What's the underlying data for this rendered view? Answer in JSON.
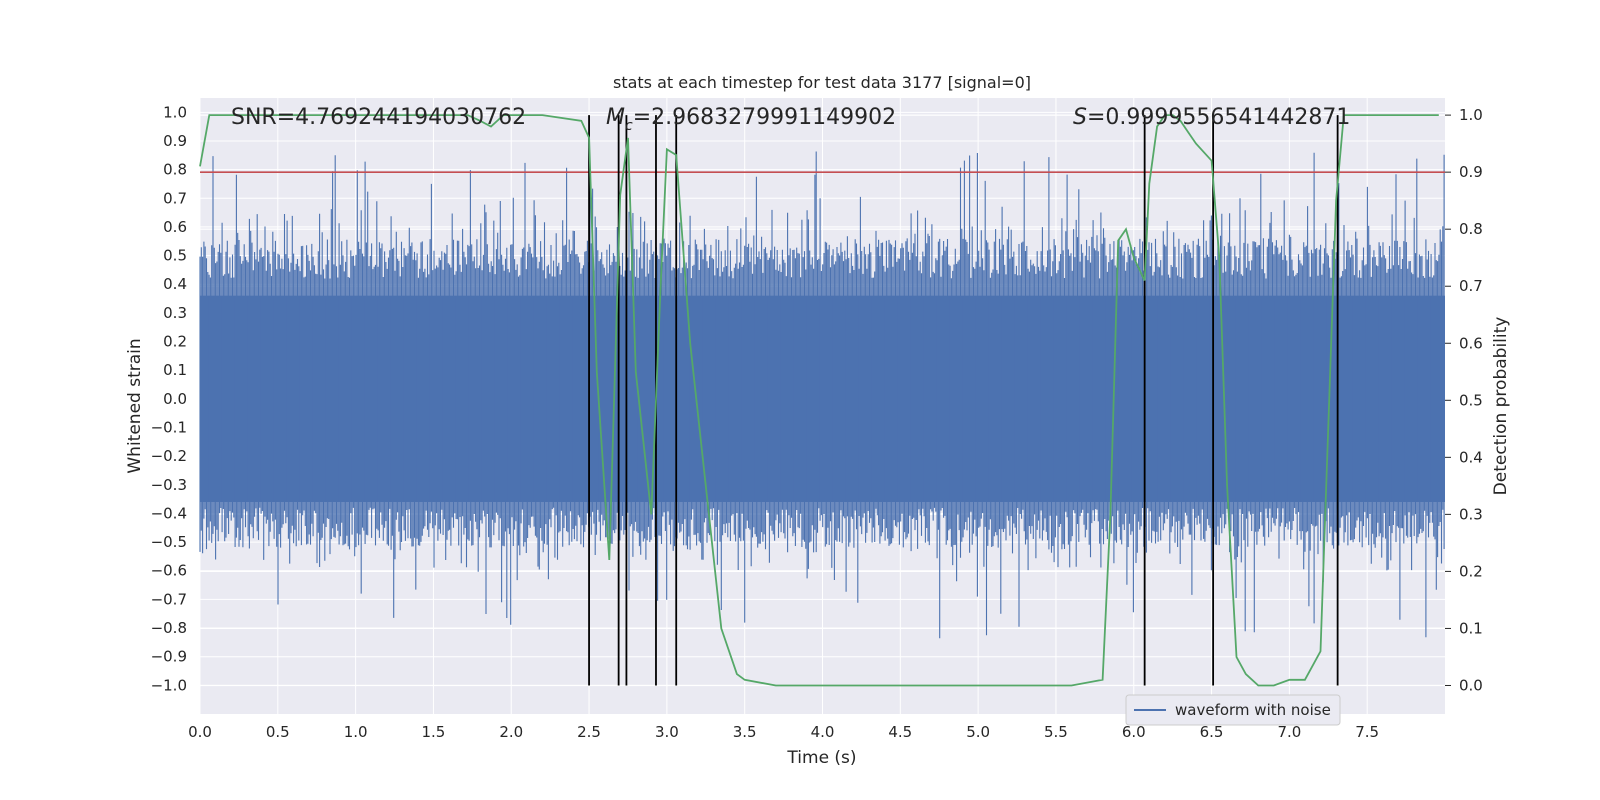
{
  "chart_data": {
    "type": "line",
    "title": "stats at each timestep for test data 3177 [signal=0]",
    "xlabel": "Time (s)",
    "ylabel_left": "Whitened strain",
    "ylabel_right": "Detection probability",
    "xlim": [
      0.0,
      8.0
    ],
    "ylim_left": [
      -1.1,
      1.05
    ],
    "ylim_right": [
      -0.05,
      1.03
    ],
    "x_ticks": [
      "0.0",
      "0.5",
      "1.0",
      "1.5",
      "2.0",
      "2.5",
      "3.0",
      "3.5",
      "4.0",
      "4.5",
      "5.0",
      "5.5",
      "6.0",
      "6.5",
      "7.0",
      "7.5"
    ],
    "y_left_ticks": [
      "1.0",
      "0.9",
      "0.8",
      "0.7",
      "0.6",
      "0.5",
      "0.4",
      "0.3",
      "0.2",
      "0.1",
      "0.0",
      "−0.1",
      "−0.2",
      "−0.3",
      "−0.4",
      "−0.5",
      "−0.6",
      "−0.7",
      "−0.8",
      "−0.9",
      "−1.0"
    ],
    "y_right_ticks": [
      "1.0",
      "0.9",
      "0.8",
      "0.7",
      "0.6",
      "0.5",
      "0.4",
      "0.3",
      "0.2",
      "0.1",
      "0.0"
    ],
    "grid": true,
    "annotations": {
      "snr": "SNR=4.769244194030762",
      "mc_symbol": "M",
      "mc_sub": "c",
      "mc_value": "=2.9683279991149902",
      "s_symbol": "S",
      "s_value": "=0.9999556541442871"
    },
    "series": [
      {
        "name": "waveform with noise",
        "axis": "left",
        "color": "#4c72b0",
        "description_values": {
          "core_amplitude": 0.36,
          "peak_max": 0.93,
          "trough_min": -0.92
        }
      },
      {
        "axis": "right",
        "color": "#55a868",
        "x": [
          0.0,
          0.06,
          0.5,
          1.0,
          1.5,
          1.72,
          1.8,
          1.87,
          1.95,
          2.2,
          2.45,
          2.5,
          2.55,
          2.63,
          2.7,
          2.75,
          2.8,
          2.9,
          2.96,
          3.0,
          3.06,
          3.15,
          3.25,
          3.35,
          3.45,
          3.5,
          3.7,
          4.0,
          4.3,
          4.5,
          4.8,
          5.0,
          5.3,
          5.6,
          5.8,
          5.85,
          5.9,
          5.95,
          6.0,
          6.07,
          6.1,
          6.15,
          6.2,
          6.25,
          6.3,
          6.35,
          6.4,
          6.5,
          6.55,
          6.6,
          6.66,
          6.72,
          6.8,
          6.9,
          7.0,
          7.1,
          7.2,
          7.3,
          7.35,
          7.4,
          7.96
        ],
        "y": [
          0.91,
          1.0,
          1.0,
          1.0,
          1.0,
          1.0,
          0.99,
          0.98,
          1.0,
          1.0,
          0.99,
          0.96,
          0.55,
          0.22,
          0.86,
          0.96,
          0.55,
          0.3,
          0.7,
          0.94,
          0.93,
          0.6,
          0.35,
          0.1,
          0.02,
          0.01,
          0.0,
          0.0,
          0.0,
          0.0,
          0.0,
          0.0,
          0.0,
          0.0,
          0.01,
          0.3,
          0.78,
          0.8,
          0.75,
          0.71,
          0.88,
          0.98,
          1.0,
          1.0,
          0.99,
          0.97,
          0.95,
          0.92,
          0.75,
          0.35,
          0.05,
          0.02,
          0.0,
          0.0,
          0.01,
          0.01,
          0.06,
          0.85,
          1.0,
          1.0,
          1.0
        ]
      }
    ],
    "threshold_line": {
      "axis": "right",
      "value": 0.9,
      "color": "#c44e52"
    },
    "vertical_lines": [
      2.5,
      2.69,
      2.74,
      2.93,
      3.06,
      6.07,
      6.51,
      7.31
    ],
    "legend_position": "lower-right",
    "colors": {
      "background": "#eaeaf2",
      "grid": "#ffffff",
      "vline": "#000000"
    }
  }
}
